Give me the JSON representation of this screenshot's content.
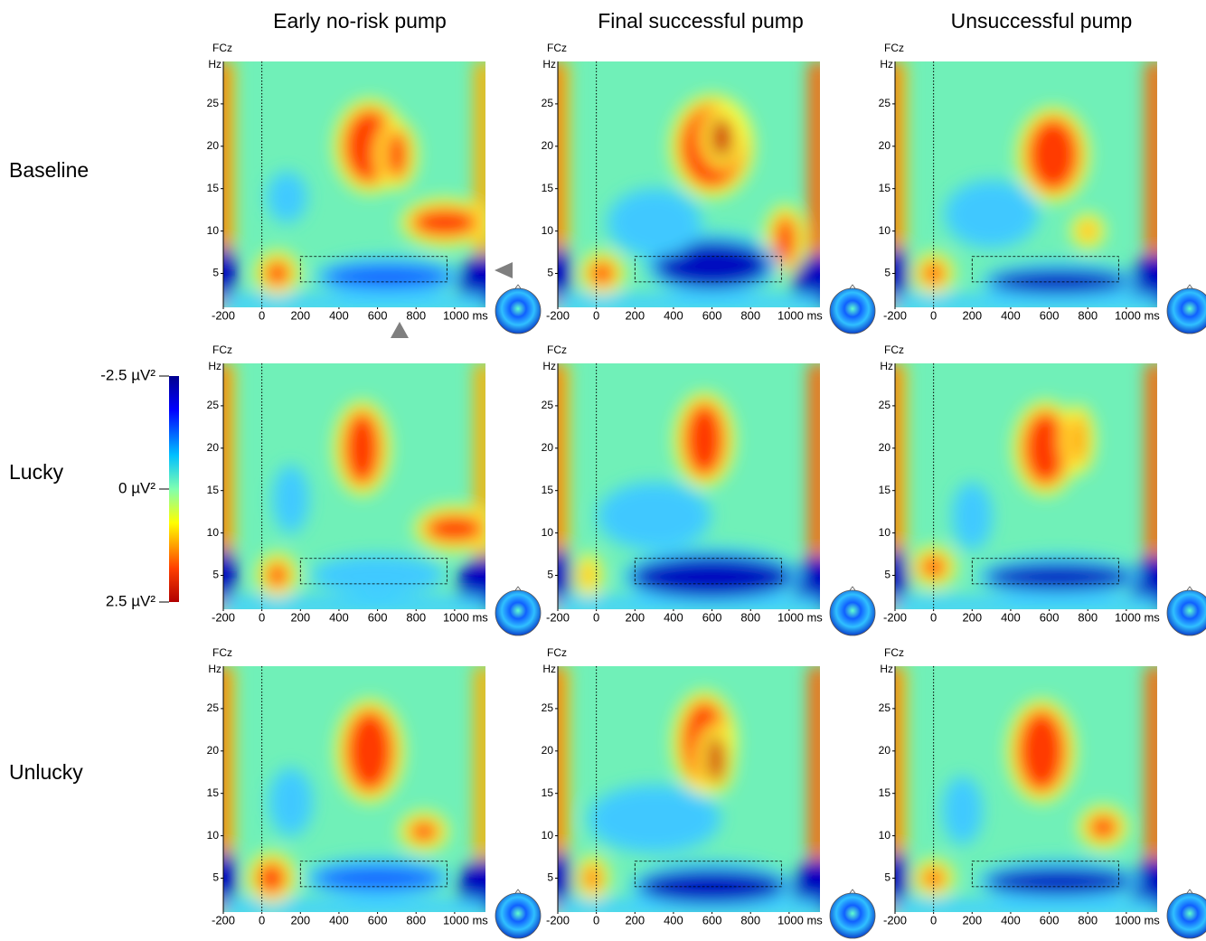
{
  "figure": {
    "columns": [
      "Early no-risk pump",
      "Final successful pump",
      "Unsuccessful pump"
    ],
    "rows": [
      "Baseline",
      "Lucky",
      "Unlucky"
    ],
    "channel": "FCz",
    "y_unit": "Hz",
    "xticks": [
      -200,
      0,
      200,
      400,
      600,
      800,
      {
        "value": 1000,
        "label": "1000 ms"
      }
    ],
    "yticks": [
      5,
      10,
      15,
      20,
      25
    ],
    "xlim": [
      -200,
      1160
    ],
    "ylim": [
      1,
      30
    ],
    "colorbar": {
      "labels": [
        {
          "value": -2.5,
          "label": "-2.5 µV²"
        },
        {
          "value": 0,
          "label": "0 µV²"
        },
        {
          "value": 2.5,
          "label": "2.5 µV²"
        }
      ]
    }
  }
}
